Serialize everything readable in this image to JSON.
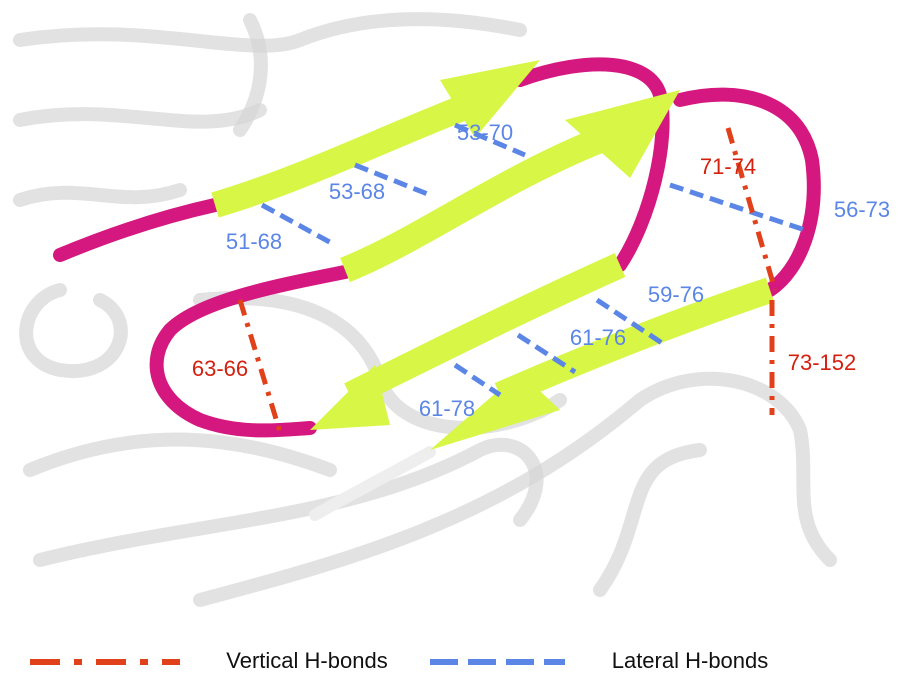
{
  "lateral_labels": [
    "53-70",
    "53-68",
    "51-68",
    "56-73",
    "59-76",
    "61-76",
    "61-78"
  ],
  "vertical_labels": [
    "71-74",
    "63-66",
    "73-152"
  ],
  "legend": {
    "vertical": "Vertical H-bonds",
    "lateral": "Lateral H-bonds"
  }
}
